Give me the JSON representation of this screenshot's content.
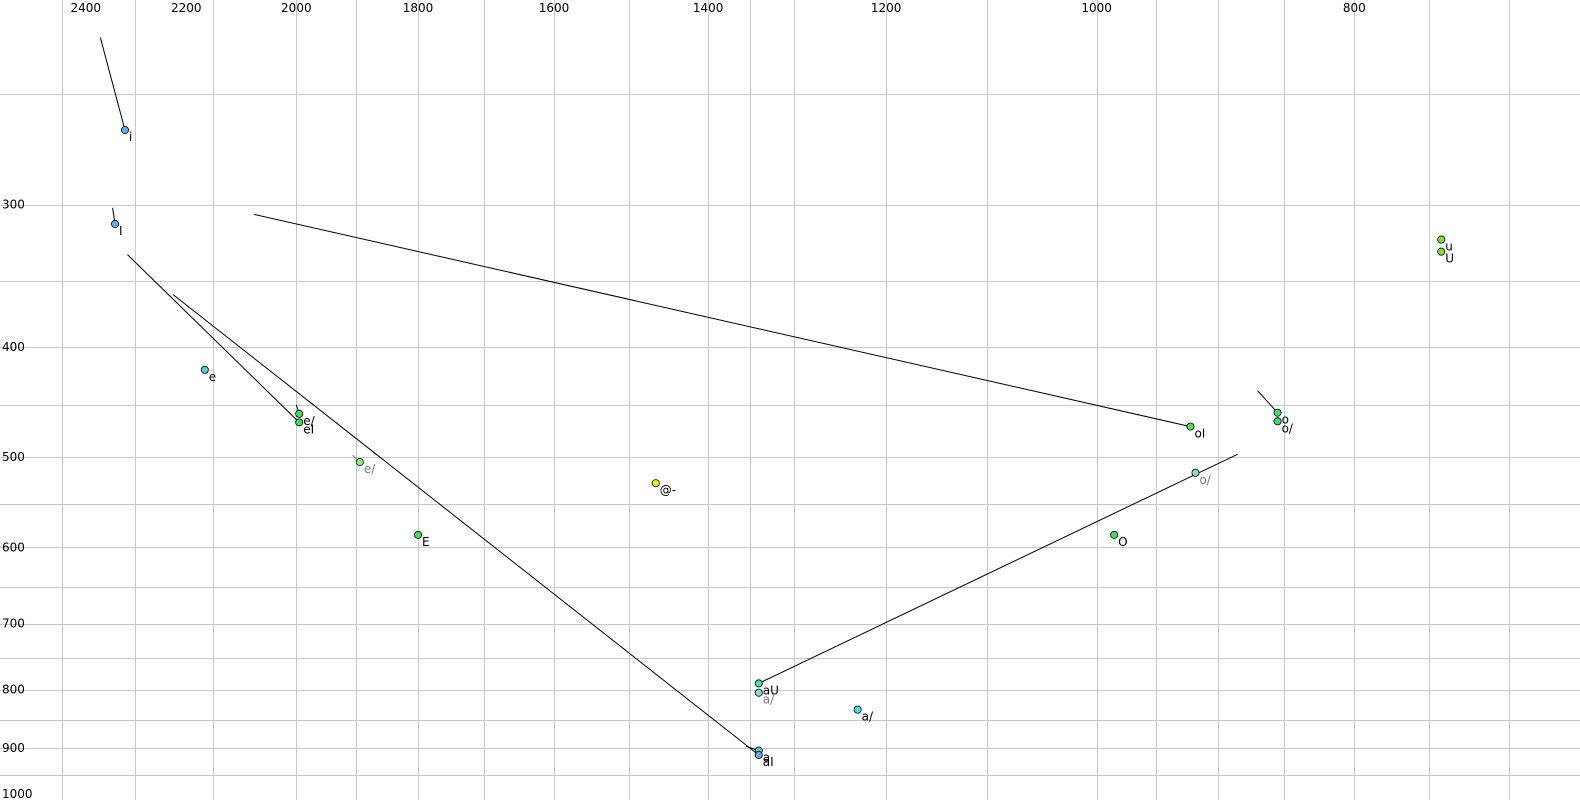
{
  "chart_data": {
    "type": "scatter",
    "title": "",
    "xlabel": "",
    "ylabel": "",
    "x_axis": {
      "reversed": true,
      "scale": "log",
      "range": [
        2450,
        680
      ],
      "ticks": [
        2400,
        2200,
        2000,
        1800,
        1600,
        1400,
        1200,
        1000,
        800
      ],
      "position": "top"
    },
    "y_axis": {
      "reversed": false,
      "scale": "log",
      "range": [
        200,
        1000
      ],
      "ticks": [
        300,
        400,
        500,
        600,
        700,
        800,
        900,
        1000
      ],
      "position": "left"
    },
    "grid": true,
    "grid_x_values": [
      2450,
      2300,
      2150,
      2000,
      1900,
      1800,
      1700,
      1600,
      1500,
      1400,
      1350,
      1300,
      1200,
      1100,
      1000,
      950,
      900,
      850,
      800,
      750,
      700
    ],
    "grid_y_values": [
      240,
      300,
      350,
      400,
      450,
      500,
      550,
      600,
      650,
      700,
      750,
      800,
      850,
      900,
      950,
      1000
    ],
    "points": [
      {
        "label": "i",
        "f2": 2320,
        "f1": 258,
        "color": "#66aaee",
        "faded": false
      },
      {
        "label": "I",
        "f2": 2340,
        "f1": 312,
        "color": "#66aaee",
        "faded": false
      },
      {
        "label": "e",
        "f2": 2165,
        "f1": 419,
        "color": "#55cccc",
        "faded": false
      },
      {
        "label": "e/",
        "f2": 1995,
        "f1": 458,
        "color": "#44dd66",
        "faded": false
      },
      {
        "label": "eI",
        "f2": 1995,
        "f1": 466,
        "color": "#44dd66",
        "faded": false
      },
      {
        "label": "e/",
        "f2": 1893,
        "f1": 505,
        "color": "#88ee88",
        "faded": true
      },
      {
        "label": "E",
        "f2": 1800,
        "f1": 585,
        "color": "#44dd66",
        "faded": false
      },
      {
        "label": "@-",
        "f2": 1465,
        "f1": 527,
        "color": "#eeee22",
        "faded": false
      },
      {
        "label": "aU",
        "f2": 1340,
        "f1": 790,
        "color": "#55ddaa",
        "faded": false
      },
      {
        "label": "a/",
        "f2": 1340,
        "f1": 805,
        "color": "#88ddcc",
        "faded": true
      },
      {
        "label": "a/",
        "f2": 1230,
        "f1": 833,
        "color": "#44dddd",
        "faded": false
      },
      {
        "label": "a",
        "f2": 1340,
        "f1": 905,
        "color": "#55cccc",
        "faded": false
      },
      {
        "label": "aI",
        "f2": 1340,
        "f1": 913,
        "color": "#66aaee",
        "faded": false
      },
      {
        "label": "O",
        "f2": 985,
        "f1": 585,
        "color": "#44dd66",
        "faded": false
      },
      {
        "label": "oI",
        "f2": 922,
        "f1": 470,
        "color": "#55dd55",
        "faded": false
      },
      {
        "label": "o/",
        "f2": 918,
        "f1": 516,
        "color": "#88ddcc",
        "faded": true
      },
      {
        "label": "o",
        "f2": 855,
        "f1": 457,
        "color": "#44dd66",
        "faded": false
      },
      {
        "label": "o/",
        "f2": 855,
        "f1": 465,
        "color": "#44dd66",
        "faded": false
      },
      {
        "label": "u",
        "f2": 742,
        "f1": 322,
        "color": "#88dd33",
        "faded": false
      },
      {
        "label": "U",
        "f2": 742,
        "f1": 330,
        "color": "#88dd33",
        "faded": false
      }
    ],
    "trajectories": [
      {
        "from": [
          2370,
          214
        ],
        "to": [
          2320,
          258
        ],
        "faded": false
      },
      {
        "from": [
          2345,
          302
        ],
        "to": [
          2340,
          312
        ],
        "faded": false
      },
      {
        "from": [
          2315,
          332
        ],
        "to": [
          1995,
          466
        ],
        "faded": false
      },
      {
        "from": [
          2000,
          450
        ],
        "to": [
          1995,
          458
        ],
        "faded": false
      },
      {
        "from": [
          1905,
          498
        ],
        "to": [
          1893,
          505
        ],
        "faded": true
      },
      {
        "from": [
          2075,
          306
        ],
        "to": [
          922,
          470
        ],
        "faded": false
      },
      {
        "from": [
          2225,
          360
        ],
        "to": [
          1340,
          913
        ],
        "faded": false
      },
      {
        "from": [
          1355,
          897
        ],
        "to": [
          1340,
          905
        ],
        "faded": false
      },
      {
        "from": [
          885,
          497
        ],
        "to": [
          1340,
          790
        ],
        "faded": false
      },
      {
        "from": [
          870,
          437
        ],
        "to": [
          855,
          457
        ],
        "faded": false
      }
    ]
  }
}
